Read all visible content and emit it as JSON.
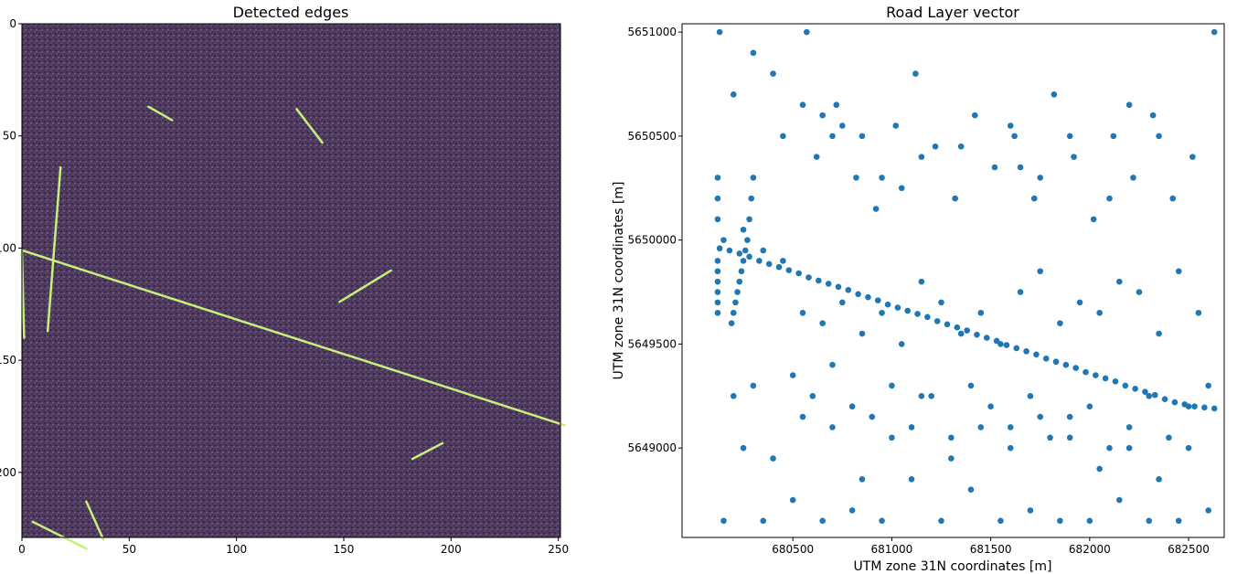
{
  "chart_data": [
    {
      "type": "heatmap",
      "title": "Detected edges",
      "xlabel": "",
      "ylabel": "",
      "xlim": [
        0,
        251
      ],
      "ylim": [
        229,
        0
      ],
      "xticks": [
        0,
        50,
        100,
        150,
        200,
        250
      ],
      "yticks": [
        0,
        50,
        100,
        150,
        200
      ],
      "colormap": "viridis",
      "colors": {
        "background": "#5e4a6e",
        "dark": "#3a2748",
        "edge": "#c6f07a"
      },
      "edge_lines": [
        {
          "x": [
            0,
            253
          ],
          "y": [
            101,
            179
          ]
        },
        {
          "x": [
            12,
            18
          ],
          "y": [
            137,
            64
          ]
        },
        {
          "x": [
            0,
            1
          ],
          "y": [
            102,
            140
          ]
        },
        {
          "x": [
            128,
            140
          ],
          "y": [
            38,
            53
          ]
        },
        {
          "x": [
            148,
            172
          ],
          "y": [
            124,
            110
          ]
        },
        {
          "x": [
            5,
            30
          ],
          "y": [
            222,
            234
          ]
        },
        {
          "x": [
            30,
            38
          ],
          "y": [
            213,
            230
          ]
        },
        {
          "x": [
            59,
            70
          ],
          "y": [
            37,
            43
          ]
        },
        {
          "x": [
            182,
            196
          ],
          "y": [
            194,
            187
          ]
        }
      ]
    },
    {
      "type": "scatter",
      "title": "Road Layer vector",
      "xlabel": "UTM zone 31N coordinates [m]",
      "ylabel": "UTM zone 31N coordinates [m]",
      "xlim": [
        679940,
        682680
      ],
      "ylim": [
        5648570,
        5651040
      ],
      "xticks": [
        680500,
        681000,
        681500,
        682000,
        682500
      ],
      "yticks": [
        5649000,
        5649500,
        5650000,
        5650500,
        5651000
      ],
      "color": "#1f77b4",
      "series": [
        {
          "x": [
            680130,
            680180,
            680230,
            680280,
            680330,
            680380,
            680430,
            680480,
            680530,
            680580,
            680630,
            680680,
            680730,
            680780,
            680830,
            680880,
            680930,
            680980,
            681030,
            681080,
            681130,
            681180,
            681230,
            681280,
            681330,
            681380,
            681430,
            681480,
            681530,
            681580,
            681630,
            681680,
            681730,
            681780,
            681830,
            681880,
            681930,
            681980,
            682030,
            682080,
            682130,
            682180,
            682230,
            682280,
            682330,
            682380,
            682430,
            682480,
            682530,
            682580,
            682630
          ],
          "y": [
            5649960,
            5649950,
            5649935,
            5649920,
            5649900,
            5649885,
            5649870,
            5649855,
            5649840,
            5649820,
            5649805,
            5649790,
            5649775,
            5649760,
            5649740,
            5649725,
            5649710,
            5649690,
            5649675,
            5649660,
            5649645,
            5649630,
            5649610,
            5649595,
            5649580,
            5649565,
            5649545,
            5649530,
            5649515,
            5649495,
            5649480,
            5649465,
            5649450,
            5649430,
            5649415,
            5649400,
            5649385,
            5649365,
            5649350,
            5649335,
            5649320,
            5649300,
            5649285,
            5649270,
            5649255,
            5649235,
            5649220,
            5649210,
            5649200,
            5649195,
            5649190
          ]
        },
        {
          "x": [
            680190,
            680200,
            680210,
            680220,
            680230,
            680240,
            680250,
            680260,
            680270,
            680280,
            680290,
            680300
          ],
          "y": [
            5649600,
            5649650,
            5649700,
            5649750,
            5649800,
            5649850,
            5649900,
            5649950,
            5650000,
            5650100,
            5650200,
            5650300
          ]
        },
        {
          "x": [
            680120,
            680120,
            680120,
            680120,
            680120,
            680120,
            680120,
            680120,
            680120
          ],
          "y": [
            5649650,
            5649700,
            5649750,
            5649800,
            5649850,
            5649900,
            5650100,
            5650200,
            5650300
          ]
        },
        {
          "x": [
            680130,
            680300,
            680400,
            680550,
            680570,
            680650,
            680700,
            680750,
            680850,
            680950,
            681050,
            681150,
            681350,
            681600,
            681650,
            681750,
            681900,
            682100,
            682200,
            682350,
            682630,
            680200,
            680450,
            680620,
            680720,
            680820,
            680920,
            681020,
            681120,
            681220,
            681320,
            681420,
            681520,
            681620,
            681720,
            681820,
            681920,
            682020,
            682120,
            682220,
            682320,
            682420,
            682520,
            680150,
            680250,
            680350,
            680450,
            680550,
            680650,
            680750,
            680850,
            680950,
            681050,
            681150,
            681250,
            681350,
            681450,
            681550,
            681650,
            681750,
            681850,
            681950,
            682050,
            682150,
            682250,
            682350,
            682450,
            682550,
            680200,
            680300,
            680500,
            680600,
            680700,
            680800,
            680900,
            681000,
            681100,
            681200,
            681300,
            681400,
            681500,
            681600,
            681700,
            681800,
            681900,
            682000,
            682100,
            682200,
            682300,
            682400,
            682500,
            682600,
            680250,
            680400,
            680550,
            680700,
            680850,
            681000,
            681150,
            681300,
            681450,
            681600,
            681750,
            681900,
            682050,
            682200,
            682350,
            682500,
            680150,
            680350,
            680500,
            680650,
            680800,
            680950,
            681100,
            681250,
            681400,
            681550,
            681700,
            681850,
            682000,
            682150,
            682300,
            682450,
            682600
          ],
          "y": [
            5651000,
            5650900,
            5650800,
            5650650,
            5651000,
            5650600,
            5650500,
            5650550,
            5650500,
            5650300,
            5650250,
            5650400,
            5650450,
            5650550,
            5650350,
            5650300,
            5650500,
            5650200,
            5650650,
            5650500,
            5651000,
            5650700,
            5650500,
            5650400,
            5650650,
            5650300,
            5650150,
            5650550,
            5650800,
            5650450,
            5650200,
            5650600,
            5650350,
            5650500,
            5650200,
            5650700,
            5650400,
            5650100,
            5650500,
            5650300,
            5650600,
            5650200,
            5650400,
            5650000,
            5650050,
            5649950,
            5649900,
            5649650,
            5649600,
            5649700,
            5649550,
            5649650,
            5649500,
            5649800,
            5649700,
            5649550,
            5649650,
            5649500,
            5649750,
            5649850,
            5649600,
            5649700,
            5649650,
            5649800,
            5649750,
            5649550,
            5649850,
            5649650,
            5649250,
            5649300,
            5649350,
            5649250,
            5649400,
            5649200,
            5649150,
            5649300,
            5649100,
            5649250,
            5649050,
            5649300,
            5649200,
            5649100,
            5649250,
            5649050,
            5649150,
            5649200,
            5649000,
            5649100,
            5649250,
            5649050,
            5649200,
            5649300,
            5649000,
            5648950,
            5649150,
            5649100,
            5648850,
            5649050,
            5649250,
            5648950,
            5649100,
            5649000,
            5649150,
            5649050,
            5648900,
            5649000,
            5648850,
            5649000,
            5648650,
            5648650,
            5648750,
            5648650,
            5648700,
            5648650,
            5648850,
            5648650,
            5648800,
            5648650,
            5648700,
            5648650,
            5648650,
            5648750,
            5648650,
            5648650,
            5648700
          ]
        }
      ]
    }
  ]
}
